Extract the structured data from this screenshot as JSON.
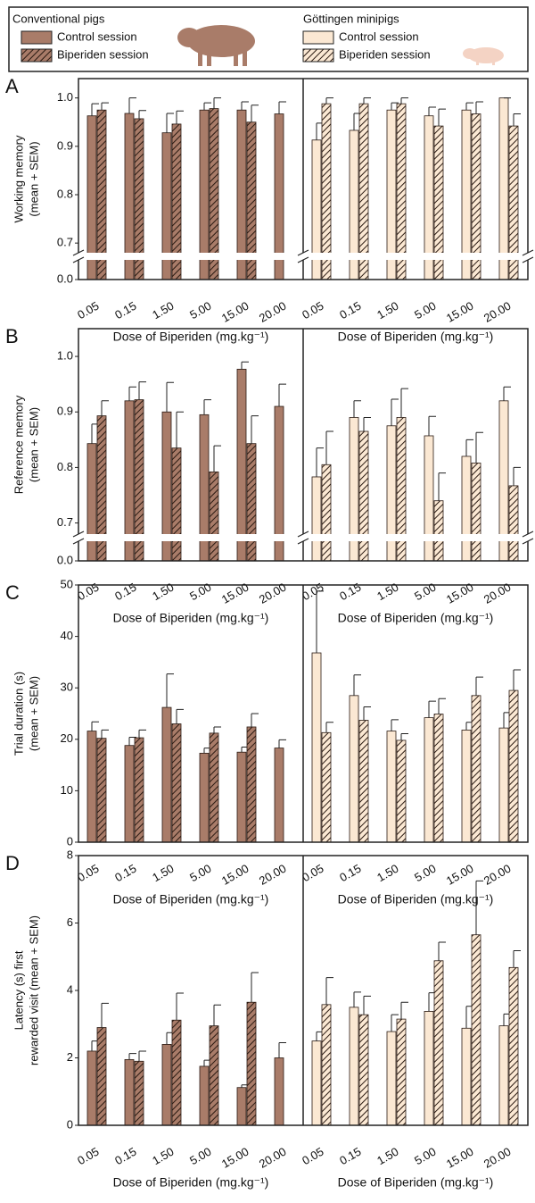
{
  "legend": {
    "groups": [
      {
        "title": "Conventional pigs",
        "entries": [
          {
            "name": "Control session",
            "color": "#a97c69",
            "hatch": false
          },
          {
            "name": "Biperiden session",
            "color": "#a97c69",
            "hatch": true
          }
        ]
      },
      {
        "title": "Göttingen minipigs",
        "entries": [
          {
            "name": "Control session",
            "color": "#fbe8d3",
            "hatch": false
          },
          {
            "name": "Biperiden session",
            "color": "#fbe8d3",
            "hatch": true
          }
        ]
      }
    ]
  },
  "chart_data": [
    {
      "type": "bar",
      "label": "A",
      "ylabel": [
        "Working memory",
        "(mean + SEM)"
      ],
      "xlabel": "Dose of Biperiden (mg.kg⁻¹)",
      "categories": [
        "0.05",
        "0.15",
        "1.50",
        "5.00",
        "15.00",
        "20.00"
      ],
      "ylim": [
        0,
        1.04
      ],
      "axis_break": [
        0.05,
        0.68
      ],
      "yticks": [
        {
          "value": 0,
          "label": "0.0"
        },
        0.7,
        0.8,
        0.9,
        {
          "value": 1,
          "label": "1.0"
        }
      ],
      "panels": [
        {
          "series": [
            {
              "values": [
                0.963,
                0.968,
                0.928,
                0.975,
                0.975,
                0.967
              ],
              "errors": [
                0.025,
                0.032,
                0.04,
                0.015,
                0.017,
                0.025
              ]
            },
            {
              "values": [
                0.975,
                0.957,
                0.946,
                0.978,
                0.95,
                null
              ],
              "errors": [
                0.015,
                0.017,
                0.027,
                0.022,
                0.035,
                null
              ]
            }
          ]
        },
        {
          "series": [
            {
              "values": [
                0.913,
                0.933,
                0.975,
                0.963,
                0.975,
                1.0
              ],
              "errors": [
                0.035,
                0.035,
                0.015,
                0.018,
                0.015,
                0
              ]
            },
            {
              "values": [
                0.988,
                0.988,
                0.988,
                0.942,
                0.967,
                0.942
              ],
              "errors": [
                0.012,
                0.012,
                0.012,
                0.035,
                0.025,
                0.025
              ]
            }
          ]
        }
      ]
    },
    {
      "type": "bar",
      "label": "B",
      "ylabel": [
        "Reference memory",
        "(mean + SEM)"
      ],
      "xlabel": "Dose of Biperiden (mg.kg⁻¹)",
      "categories": [
        "0.05",
        "0.15",
        "1.50",
        "5.00",
        "15.00",
        "20.00"
      ],
      "ylim": [
        0,
        1.05
      ],
      "axis_break": [
        0.05,
        0.68
      ],
      "yticks": [
        {
          "value": 0,
          "label": "0.0"
        },
        0.7,
        0.8,
        0.9,
        {
          "value": 1,
          "label": "1.0"
        }
      ],
      "panels": [
        {
          "series": [
            {
              "values": [
                0.843,
                0.92,
                0.9,
                0.895,
                0.977,
                0.91
              ],
              "errors": [
                0.035,
                0.025,
                0.053,
                0.027,
                0.013,
                0.04
              ]
            },
            {
              "values": [
                0.893,
                0.922,
                0.835,
                0.792,
                0.843,
                null
              ],
              "errors": [
                0.027,
                0.032,
                0.065,
                0.047,
                0.05,
                null
              ]
            }
          ]
        },
        {
          "series": [
            {
              "values": [
                0.783,
                0.89,
                0.875,
                0.857,
                0.82,
                0.92
              ],
              "errors": [
                0.052,
                0.03,
                0.048,
                0.035,
                0.03,
                0.025
              ]
            },
            {
              "values": [
                0.805,
                0.865,
                0.89,
                0.74,
                0.808,
                0.767
              ],
              "errors": [
                0.06,
                0.025,
                0.052,
                0.05,
                0.055,
                0.033
              ]
            }
          ]
        }
      ]
    },
    {
      "type": "bar",
      "label": "C",
      "ylabel": [
        "Trial duration (s)",
        "(mean + SEM)"
      ],
      "xlabel": "Dose of Biperiden (mg.kg⁻¹)",
      "categories": [
        "0.05",
        "0.15",
        "1.50",
        "5.00",
        "15.00",
        "20.00"
      ],
      "ylim": [
        0,
        50
      ],
      "yticks": [
        0,
        10,
        20,
        30,
        40,
        50
      ],
      "panels": [
        {
          "series": [
            {
              "values": [
                21.6,
                18.8,
                26.2,
                17.3,
                17.5,
                18.3
              ],
              "errors": [
                1.8,
                1.6,
                6.5,
                1.0,
                1.0,
                1.6
              ]
            },
            {
              "values": [
                20.2,
                20.3,
                23.0,
                21.2,
                22.4,
                null
              ],
              "errors": [
                1.6,
                1.5,
                2.8,
                1.2,
                2.6,
                null
              ]
            }
          ]
        },
        {
          "series": [
            {
              "values": [
                36.8,
                28.5,
                21.6,
                24.2,
                21.8,
                22.2
              ],
              "errors": [
                12,
                4.0,
                2.2,
                3.2,
                1.5,
                3.0
              ]
            },
            {
              "values": [
                21.3,
                23.7,
                19.8,
                24.9,
                28.5,
                29.5
              ],
              "errors": [
                2.0,
                2.6,
                1.3,
                3.0,
                3.6,
                4.0
              ]
            }
          ]
        }
      ]
    },
    {
      "type": "bar",
      "label": "D",
      "ylabel": [
        "Latency (s) first",
        "rewarded visit (mean + SEM)"
      ],
      "xlabel": "Dose of Biperiden (mg.kg⁻¹)",
      "categories": [
        "0.05",
        "0.15",
        "1.50",
        "5.00",
        "15.00",
        "20.00"
      ],
      "ylim": [
        0,
        8
      ],
      "yticks": [
        0,
        2,
        4,
        6,
        8
      ],
      "panels": [
        {
          "series": [
            {
              "values": [
                2.2,
                1.95,
                2.4,
                1.75,
                1.12,
                2.0
              ],
              "errors": [
                0.3,
                0.18,
                0.35,
                0.18,
                0.08,
                0.45
              ]
            },
            {
              "values": [
                2.9,
                1.9,
                3.12,
                2.95,
                3.65,
                null
              ],
              "errors": [
                0.72,
                0.3,
                0.8,
                0.62,
                0.88,
                null
              ]
            }
          ]
        },
        {
          "series": [
            {
              "values": [
                2.5,
                3.5,
                2.78,
                3.38,
                2.88,
                2.95
              ],
              "errors": [
                0.27,
                0.45,
                0.5,
                0.55,
                0.65,
                0.35
              ]
            },
            {
              "values": [
                3.58,
                3.28,
                3.15,
                4.88,
                5.65,
                4.68
              ],
              "errors": [
                0.8,
                0.55,
                0.5,
                0.55,
                1.6,
                0.5
              ]
            }
          ]
        }
      ]
    }
  ]
}
